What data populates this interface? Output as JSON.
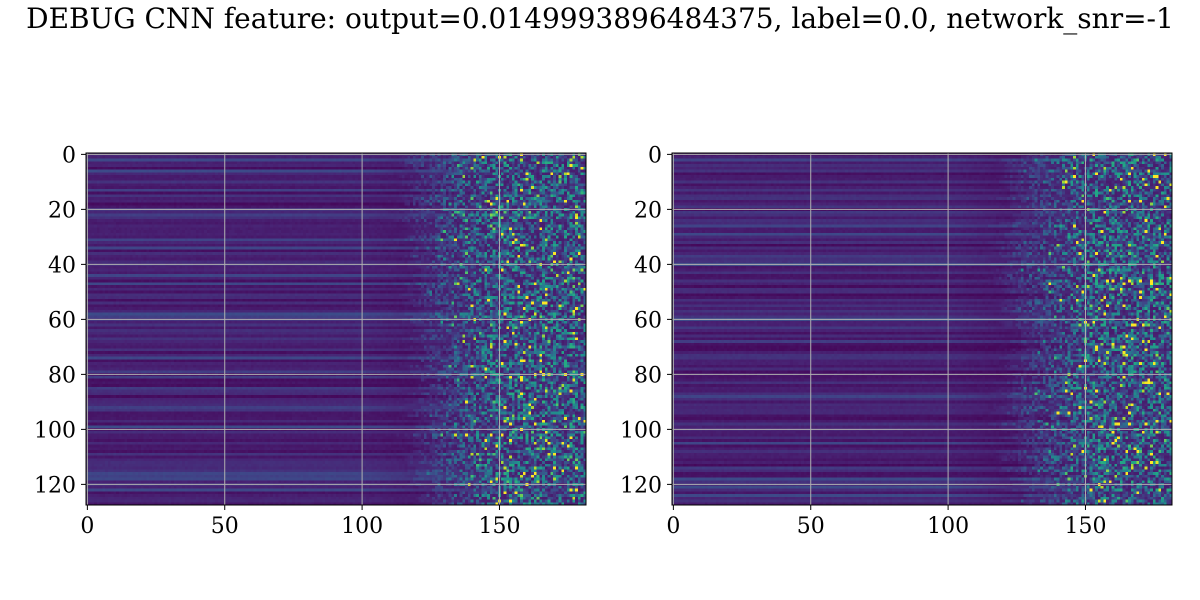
{
  "title": "DEBUG CNN feature: output=0.0149993896484375, label=0.0, network_snr=-1",
  "colors": {
    "cmap_low": "#440154",
    "cmap_mid": "#21918c",
    "cmap_high": "#fde725",
    "grid": "#b0b0b0",
    "frame": "#000000"
  },
  "chart_data": [
    {
      "type": "heatmap",
      "name": "left-panel",
      "xlim": [
        -0.5,
        181.5
      ],
      "ylim": [
        127.5,
        -0.5
      ],
      "xticks": [
        0,
        50,
        100,
        150
      ],
      "yticks": [
        0,
        20,
        40,
        60,
        80,
        100,
        120
      ],
      "xticklabels": [
        "0",
        "50",
        "100",
        "150"
      ],
      "yticklabels": [
        "0",
        "20",
        "40",
        "60",
        "80",
        "100",
        "120"
      ],
      "grid": true,
      "rows": 128,
      "cols": 182,
      "transition_col": 130,
      "colormap": "viridis"
    },
    {
      "type": "heatmap",
      "name": "right-panel",
      "xlim": [
        -0.5,
        181.5
      ],
      "ylim": [
        127.5,
        -0.5
      ],
      "xticks": [
        0,
        50,
        100,
        150
      ],
      "yticks": [
        0,
        20,
        40,
        60,
        80,
        100,
        120
      ],
      "xticklabels": [
        "0",
        "50",
        "100",
        "150"
      ],
      "yticklabels": [
        "0",
        "20",
        "40",
        "60",
        "80",
        "100",
        "120"
      ],
      "grid": true,
      "rows": 128,
      "cols": 182,
      "transition_col": 138,
      "colormap": "viridis"
    }
  ]
}
